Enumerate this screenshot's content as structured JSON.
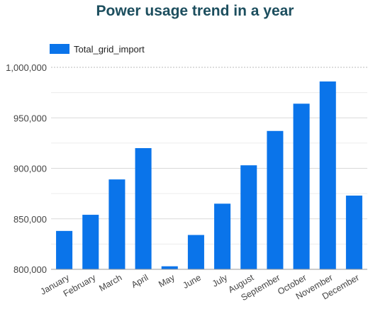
{
  "chart_data": {
    "type": "bar",
    "title": "Power usage trend in a year",
    "xlabel": "",
    "ylabel": "",
    "categories": [
      "January",
      "February",
      "March",
      "April",
      "May",
      "June",
      "July",
      "August",
      "September",
      "October",
      "November",
      "December"
    ],
    "series": [
      {
        "name": "Total_grid_import",
        "values": [
          838000,
          854000,
          889000,
          920000,
          803000,
          834000,
          865000,
          903000,
          937000,
          964000,
          986000,
          873000
        ]
      }
    ],
    "ylim": [
      800000,
      1000000
    ],
    "yticks": [
      "800,000",
      "850,000",
      "900,000",
      "950,000",
      "1,000,000"
    ],
    "ytick_values": [
      800000,
      850000,
      900000,
      950000,
      1000000
    ],
    "grid": true,
    "legend_position": "top-left",
    "colors": {
      "bar": "#0a74ea",
      "title": "#1c4e5e",
      "grid": "#d9d9d9",
      "axis_text": "#444444"
    }
  }
}
